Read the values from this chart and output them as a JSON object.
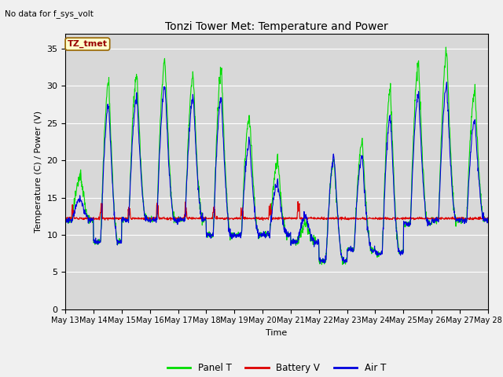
{
  "title": "Tonzi Tower Met: Temperature and Power",
  "subtitle": "No data for f_sys_volt",
  "ylabel": "Temperature (C) / Power (V)",
  "xlabel": "Time",
  "legend_label": "TZ_tmet",
  "ylim": [
    0,
    37
  ],
  "yticks": [
    0,
    5,
    10,
    15,
    20,
    25,
    30,
    35
  ],
  "x_tick_labels": [
    "May 13",
    "May 14",
    "May 15",
    "May 16",
    "May 17",
    "May 18",
    "May 19",
    "May 20",
    "May 21",
    "May 22",
    "May 23",
    "May 24",
    "May 25",
    "May 26",
    "May 27",
    "May 28"
  ],
  "panel_color": "#00dd00",
  "battery_color": "#dd0000",
  "air_color": "#0000dd",
  "plot_bg_color": "#d8d8d8",
  "fig_bg_color": "#f0f0f0",
  "legend_entries": [
    "Panel T",
    "Battery V",
    "Air T"
  ],
  "legend_colors": [
    "#00dd00",
    "#dd0000",
    "#0000dd"
  ],
  "panel_peaks": [
    18.0,
    30.5,
    31.5,
    33.5,
    31.5,
    32.0,
    26.0,
    20.0,
    11.5,
    20.0,
    22.5,
    29.5,
    33.0,
    34.5,
    29.5
  ],
  "air_peaks": [
    15.0,
    27.5,
    28.5,
    30.0,
    28.5,
    28.5,
    22.5,
    17.0,
    12.5,
    20.5,
    20.5,
    26.0,
    29.0,
    30.0,
    25.5
  ],
  "panel_troughs": [
    12.0,
    9.0,
    12.0,
    12.0,
    12.0,
    10.0,
    10.0,
    10.0,
    9.0,
    6.5,
    8.0,
    7.5,
    11.5,
    12.0,
    12.0
  ],
  "air_troughs": [
    12.0,
    9.0,
    12.0,
    12.0,
    12.0,
    10.0,
    10.0,
    10.0,
    9.0,
    6.5,
    8.0,
    7.5,
    11.5,
    12.0,
    12.0
  ],
  "n_days": 15,
  "hours_per_point": 0.25
}
